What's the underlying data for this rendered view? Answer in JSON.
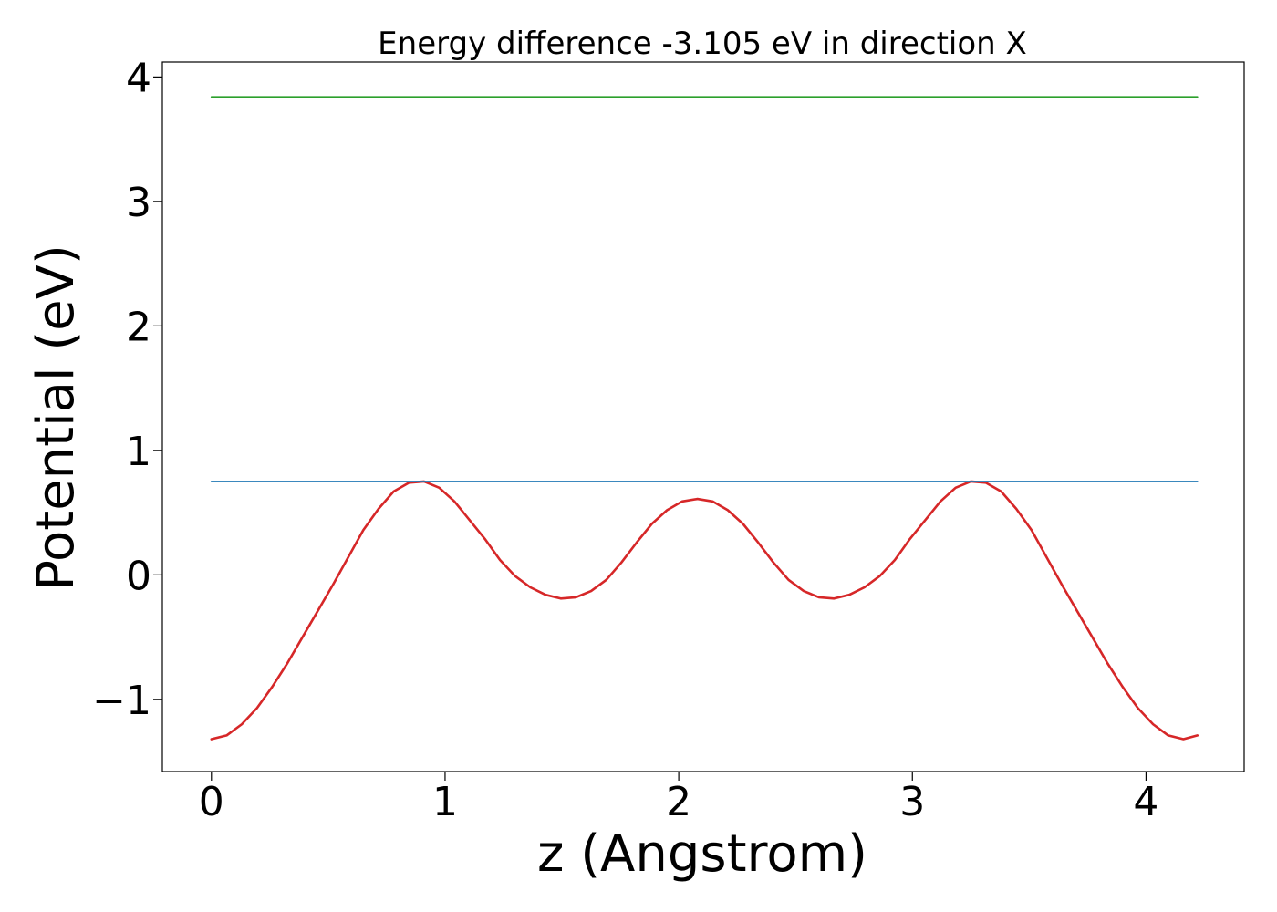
{
  "chart_data": {
    "type": "line",
    "title": "Energy difference -3.105 eV in direction X",
    "xlabel": "z (Angstrom)",
    "ylabel": "Potential (eV)",
    "xlim": [
      -0.21,
      4.42
    ],
    "ylim": [
      -1.58,
      4.12
    ],
    "xticks": [
      {
        "value": 0,
        "label": "0"
      },
      {
        "value": 1,
        "label": "1"
      },
      {
        "value": 2,
        "label": "2"
      },
      {
        "value": 3,
        "label": "3"
      },
      {
        "value": 4,
        "label": "4"
      }
    ],
    "yticks": [
      {
        "value": -1,
        "label": "−1"
      },
      {
        "value": 0,
        "label": "0"
      },
      {
        "value": 1,
        "label": "1"
      },
      {
        "value": 2,
        "label": "2"
      },
      {
        "value": 3,
        "label": "3"
      },
      {
        "value": 4,
        "label": "4"
      }
    ],
    "grid": false,
    "series": [
      {
        "color": "#d62728",
        "x": [
          0,
          0.065,
          0.13,
          0.195,
          0.26,
          0.325,
          0.39,
          0.455,
          0.52,
          0.585,
          0.65,
          0.715,
          0.78,
          0.845,
          0.91,
          0.975,
          1.04,
          1.105,
          1.17,
          1.235,
          1.3,
          1.365,
          1.43,
          1.495,
          1.56,
          1.625,
          1.69,
          1.755,
          1.82,
          1.885,
          1.95,
          2.015,
          2.08,
          2.145,
          2.21,
          2.275,
          2.34,
          2.405,
          2.47,
          2.535,
          2.6,
          2.665,
          2.73,
          2.795,
          2.86,
          2.925,
          2.99,
          3.055,
          3.12,
          3.185,
          3.25,
          3.315,
          3.38,
          3.445,
          3.51,
          3.575,
          3.64,
          3.705,
          3.77,
          3.835,
          3.9,
          3.965,
          4.03,
          4.095,
          4.16,
          4.22
        ],
        "y": [
          -1.32,
          -1.29,
          -1.2,
          -1.07,
          -0.9,
          -0.71,
          -0.5,
          -0.29,
          -0.08,
          0.14,
          0.36,
          0.53,
          0.67,
          0.74,
          0.75,
          0.7,
          0.59,
          0.44,
          0.29,
          0.12,
          -0.01,
          -0.1,
          -0.16,
          -0.19,
          -0.18,
          -0.13,
          -0.04,
          0.1,
          0.26,
          0.41,
          0.52,
          0.59,
          0.61,
          0.59,
          0.52,
          0.41,
          0.26,
          0.1,
          -0.04,
          -0.13,
          -0.18,
          -0.19,
          -0.16,
          -0.1,
          -0.01,
          0.12,
          0.29,
          0.44,
          0.59,
          0.7,
          0.75,
          0.74,
          0.67,
          0.53,
          0.36,
          0.14,
          -0.08,
          -0.29,
          -0.5,
          -0.71,
          -0.9,
          -1.07,
          -1.2,
          -1.29,
          -1.32,
          -1.29
        ]
      },
      {
        "color": "#1f77b4",
        "x": [
          0,
          4.22
        ],
        "y": [
          0.75,
          0.75
        ]
      },
      {
        "color": "#2ca02c",
        "x": [
          0,
          4.22
        ],
        "y": [
          3.84,
          3.84
        ]
      }
    ]
  }
}
